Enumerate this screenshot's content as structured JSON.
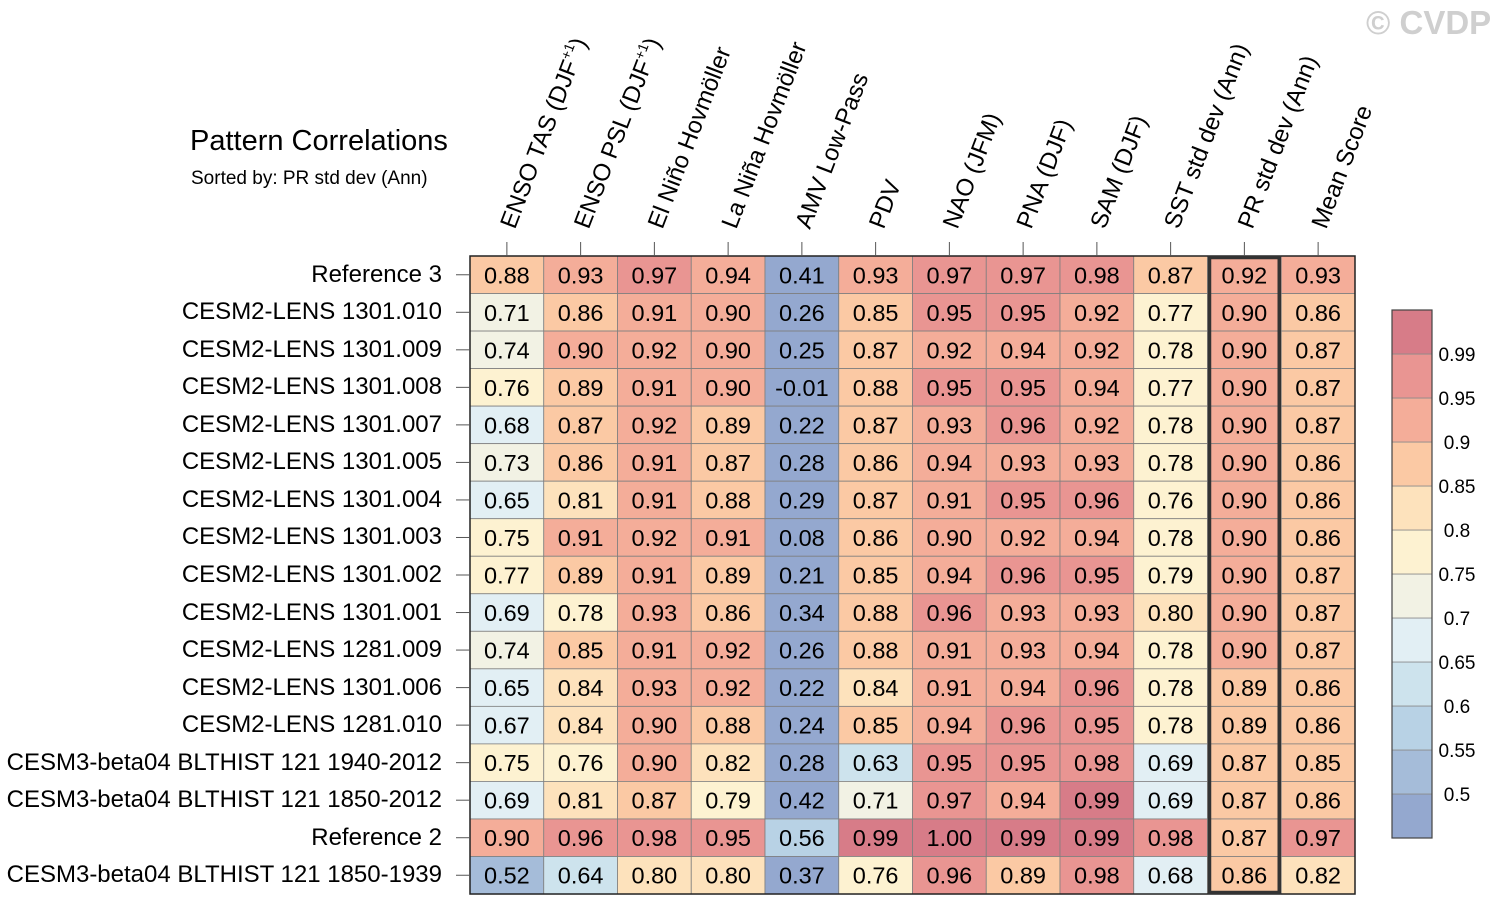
{
  "chart_data": {
    "type": "heatmap",
    "title": "Pattern Correlations",
    "subtitle": "Sorted by: PR std dev (Ann)",
    "watermark": "© CVDP",
    "columns": [
      "ENSO TAS (DJF+1)",
      "ENSO PSL (DJF+1)",
      "El Niño Hovmöller",
      "La Niña Hovmöller",
      "AMV Low-Pass",
      "PDV",
      "NAO (JFM)",
      "PNA (DJF)",
      "SAM (DJF)",
      "SST std dev (Ann)",
      "PR std dev (Ann)",
      "Mean Score"
    ],
    "column_parts": [
      {
        "base": "ENSO TAS (DJF",
        "sup": "+1",
        "tail": ")"
      },
      {
        "base": "ENSO PSL (DJF",
        "sup": "+1",
        "tail": ")"
      },
      {
        "base": "El Niño Hovmöller",
        "sup": "",
        "tail": ""
      },
      {
        "base": "La Niña Hovmöller",
        "sup": "",
        "tail": ""
      },
      {
        "base": "AMV Low-Pass",
        "sup": "",
        "tail": ""
      },
      {
        "base": "PDV",
        "sup": "",
        "tail": ""
      },
      {
        "base": "NAO (JFM)",
        "sup": "",
        "tail": ""
      },
      {
        "base": "PNA (DJF)",
        "sup": "",
        "tail": ""
      },
      {
        "base": "SAM (DJF)",
        "sup": "",
        "tail": ""
      },
      {
        "base": "SST std dev (Ann)",
        "sup": "",
        "tail": ""
      },
      {
        "base": "PR std dev (Ann)",
        "sup": "",
        "tail": ""
      },
      {
        "base": "Mean Score",
        "sup": "",
        "tail": ""
      }
    ],
    "sorted_column_index": 10,
    "rows": [
      "Reference 3",
      "CESM2-LENS 1301.010",
      "CESM2-LENS 1301.009",
      "CESM2-LENS 1301.008",
      "CESM2-LENS 1301.007",
      "CESM2-LENS 1301.005",
      "CESM2-LENS 1301.004",
      "CESM2-LENS 1301.003",
      "CESM2-LENS 1301.002",
      "CESM2-LENS 1301.001",
      "CESM2-LENS 1281.009",
      "CESM2-LENS 1301.006",
      "CESM2-LENS 1281.010",
      "CESM3-beta04 BLTHIST 121 1940-2012",
      "CESM3-beta04 BLTHIST 121 1850-2012",
      "Reference 2",
      "CESM3-beta04 BLTHIST 121 1850-1939"
    ],
    "values": [
      [
        "0.88",
        "0.93",
        "0.97",
        "0.94",
        "0.41",
        "0.93",
        "0.97",
        "0.97",
        "0.98",
        "0.87",
        "0.92",
        "0.93"
      ],
      [
        "0.71",
        "0.86",
        "0.91",
        "0.90",
        "0.26",
        "0.85",
        "0.95",
        "0.95",
        "0.92",
        "0.77",
        "0.90",
        "0.86"
      ],
      [
        "0.74",
        "0.90",
        "0.92",
        "0.90",
        "0.25",
        "0.87",
        "0.92",
        "0.94",
        "0.92",
        "0.78",
        "0.90",
        "0.87"
      ],
      [
        "0.76",
        "0.89",
        "0.91",
        "0.90",
        "-0.01",
        "0.88",
        "0.95",
        "0.95",
        "0.94",
        "0.77",
        "0.90",
        "0.87"
      ],
      [
        "0.68",
        "0.87",
        "0.92",
        "0.89",
        "0.22",
        "0.87",
        "0.93",
        "0.96",
        "0.92",
        "0.78",
        "0.90",
        "0.87"
      ],
      [
        "0.73",
        "0.86",
        "0.91",
        "0.87",
        "0.28",
        "0.86",
        "0.94",
        "0.93",
        "0.93",
        "0.78",
        "0.90",
        "0.86"
      ],
      [
        "0.65",
        "0.81",
        "0.91",
        "0.88",
        "0.29",
        "0.87",
        "0.91",
        "0.95",
        "0.96",
        "0.76",
        "0.90",
        "0.86"
      ],
      [
        "0.75",
        "0.91",
        "0.92",
        "0.91",
        "0.08",
        "0.86",
        "0.90",
        "0.92",
        "0.94",
        "0.78",
        "0.90",
        "0.86"
      ],
      [
        "0.77",
        "0.89",
        "0.91",
        "0.89",
        "0.21",
        "0.85",
        "0.94",
        "0.96",
        "0.95",
        "0.79",
        "0.90",
        "0.87"
      ],
      [
        "0.69",
        "0.78",
        "0.93",
        "0.86",
        "0.34",
        "0.88",
        "0.96",
        "0.93",
        "0.93",
        "0.80",
        "0.90",
        "0.87"
      ],
      [
        "0.74",
        "0.85",
        "0.91",
        "0.92",
        "0.26",
        "0.88",
        "0.91",
        "0.93",
        "0.94",
        "0.78",
        "0.90",
        "0.87"
      ],
      [
        "0.65",
        "0.84",
        "0.93",
        "0.92",
        "0.22",
        "0.84",
        "0.91",
        "0.94",
        "0.96",
        "0.78",
        "0.89",
        "0.86"
      ],
      [
        "0.67",
        "0.84",
        "0.90",
        "0.88",
        "0.24",
        "0.85",
        "0.94",
        "0.96",
        "0.95",
        "0.78",
        "0.89",
        "0.86"
      ],
      [
        "0.75",
        "0.76",
        "0.90",
        "0.82",
        "0.28",
        "0.63",
        "0.95",
        "0.95",
        "0.98",
        "0.69",
        "0.87",
        "0.85"
      ],
      [
        "0.69",
        "0.81",
        "0.87",
        "0.79",
        "0.42",
        "0.71",
        "0.97",
        "0.94",
        "0.99",
        "0.69",
        "0.87",
        "0.86"
      ],
      [
        "0.90",
        "0.96",
        "0.98",
        "0.95",
        "0.56",
        "0.99",
        "1.00",
        "0.99",
        "0.99",
        "0.98",
        "0.87",
        "0.97"
      ],
      [
        "0.52",
        "0.64",
        "0.80",
        "0.80",
        "0.37",
        "0.76",
        "0.96",
        "0.89",
        "0.98",
        "0.68",
        "0.86",
        "0.82"
      ]
    ],
    "colorbar": {
      "levels": [
        0.5,
        0.55,
        0.6,
        0.65,
        0.7,
        0.75,
        0.8,
        0.85,
        0.9,
        0.95,
        0.99
      ],
      "labels": [
        "0.5",
        "0.55",
        "0.6",
        "0.65",
        "0.7",
        "0.75",
        "0.8",
        "0.85",
        "0.9",
        "0.95",
        "0.99"
      ],
      "colors": [
        "#94a8cf",
        "#a5bcd9",
        "#b8d2e5",
        "#cde3ed",
        "#e2eff4",
        "#f2f2e4",
        "#fdf2d1",
        "#fde2bc",
        "#fbc9a4",
        "#f4ad99",
        "#e99592",
        "#d77c88"
      ]
    }
  }
}
